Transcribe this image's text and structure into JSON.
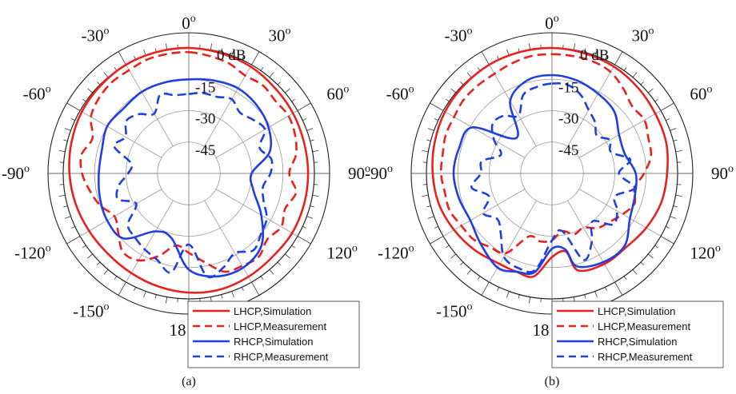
{
  "figure": {
    "panels": [
      "(a)",
      "(b)"
    ]
  },
  "chart_data": [
    {
      "type": "polar",
      "caption": "(a)",
      "radial_unit": "dB",
      "radial_labels": [
        "0 dB",
        "-15",
        "-30",
        "-45"
      ],
      "rlim": [
        -60,
        0
      ],
      "angular_labels": [
        {
          "deg": 0,
          "text": "0",
          "sup": "o"
        },
        {
          "deg": 30,
          "text": "30",
          "sup": "o"
        },
        {
          "deg": 60,
          "text": "60",
          "sup": "o"
        },
        {
          "deg": 90,
          "text": "90",
          "sup": "o"
        },
        {
          "deg": 120,
          "text": "120",
          "sup": "o"
        },
        {
          "deg": 180,
          "text": "18",
          "sup": ""
        },
        {
          "deg": -150,
          "text": "-150",
          "sup": "o"
        },
        {
          "deg": -120,
          "text": "-120",
          "sup": "o"
        },
        {
          "deg": -90,
          "text": "-90",
          "sup": "o"
        },
        {
          "deg": -60,
          "text": "-60",
          "sup": "o"
        },
        {
          "deg": -30,
          "text": "-30",
          "sup": "o"
        }
      ],
      "grid": true,
      "legend_position": "bottom-right",
      "series": [
        {
          "name": "LHCP,Simulation",
          "color": "#e8211d",
          "dash": "solid",
          "theta": [
            0,
            15,
            30,
            45,
            60,
            75,
            90,
            105,
            120,
            135,
            150,
            165,
            180,
            195,
            210,
            225,
            240,
            255,
            270,
            285,
            300,
            315,
            330,
            345
          ],
          "r_db": [
            0,
            -0.5,
            -1,
            -2,
            -2.5,
            -3,
            -3,
            -3,
            -3,
            -3.5,
            -3,
            -2.5,
            -3,
            -4,
            -5,
            -5.5,
            -5,
            -4,
            -3,
            -2,
            -1,
            -0.5,
            0,
            0
          ]
        },
        {
          "name": "LHCP,Measurement",
          "color": "#e8211d",
          "dash": "dashed",
          "theta": [
            0,
            10,
            20,
            30,
            40,
            50,
            60,
            70,
            80,
            90,
            100,
            110,
            120,
            130,
            140,
            150,
            160,
            170,
            180,
            190,
            200,
            210,
            220,
            230,
            240,
            250,
            260,
            270,
            280,
            290,
            300,
            310,
            320,
            330,
            340,
            350
          ],
          "r_db": [
            -2,
            -3,
            -4,
            -6,
            -5,
            -6,
            -5,
            -6,
            -8,
            -12,
            -8,
            -11,
            -9,
            -11,
            -8,
            -9,
            -10,
            -17,
            -22,
            -25,
            -18,
            -12,
            -11,
            -16,
            -19,
            -15,
            -12,
            -9,
            -8,
            -11,
            -6,
            -4,
            -3,
            -3,
            -2,
            -2
          ]
        },
        {
          "name": "RHCP,Simulation",
          "color": "#1f3fe0",
          "dash": "solid",
          "theta": [
            0,
            15,
            30,
            45,
            60,
            75,
            90,
            105,
            120,
            135,
            150,
            165,
            180,
            195,
            210,
            225,
            240,
            255,
            270,
            285,
            300,
            315,
            330,
            345
          ],
          "r_db": [
            -15,
            -14,
            -13,
            -14,
            -16,
            -20,
            -30,
            -28,
            -20,
            -11,
            -8,
            -9,
            -14,
            -28,
            -28,
            -16,
            -15,
            -16,
            -17,
            -17,
            -15,
            -16,
            -15,
            -15
          ]
        },
        {
          "name": "RHCP,Measurement",
          "color": "#1f3fe0",
          "dash": "dashed",
          "theta": [
            0,
            10,
            20,
            30,
            40,
            50,
            60,
            70,
            80,
            90,
            100,
            110,
            120,
            130,
            140,
            150,
            160,
            170,
            180,
            190,
            200,
            210,
            220,
            230,
            240,
            250,
            260,
            270,
            280,
            290,
            300,
            310,
            320,
            330,
            340,
            350
          ],
          "r_db": [
            -22,
            -21,
            -21,
            -19,
            -22,
            -20,
            -18,
            -24,
            -20,
            -21,
            -24,
            -22,
            -17,
            -15,
            -12,
            -16,
            -12,
            -10,
            -26,
            -12,
            -16,
            -18,
            -20,
            -22,
            -31,
            -24,
            -26,
            -31,
            -32,
            -22,
            -25,
            -21,
            -23,
            -27,
            -20,
            -22
          ]
        }
      ]
    },
    {
      "type": "polar",
      "caption": "(b)",
      "radial_unit": "dB",
      "radial_labels": [
        "0 dB",
        "-15",
        "-30",
        "-45"
      ],
      "rlim": [
        -60,
        0
      ],
      "angular_labels": [
        {
          "deg": 0,
          "text": "0",
          "sup": "o"
        },
        {
          "deg": 30,
          "text": "30",
          "sup": "o"
        },
        {
          "deg": 60,
          "text": "60",
          "sup": "o"
        },
        {
          "deg": 90,
          "text": "90",
          "sup": "o"
        },
        {
          "deg": 120,
          "text": "120",
          "sup": "o"
        },
        {
          "deg": 180,
          "text": "18",
          "sup": ""
        },
        {
          "deg": -150,
          "text": "-150",
          "sup": "o"
        },
        {
          "deg": -120,
          "text": "-120",
          "sup": "o"
        },
        {
          "deg": -90,
          "text": "-90",
          "sup": "o"
        },
        {
          "deg": -60,
          "text": "-60",
          "sup": "o"
        },
        {
          "deg": -30,
          "text": "-30",
          "sup": "o"
        }
      ],
      "grid": true,
      "legend_position": "bottom-right",
      "series": [
        {
          "name": "LHCP,Simulation",
          "color": "#e8211d",
          "dash": "solid",
          "theta": [
            0,
            15,
            30,
            45,
            60,
            75,
            90,
            105,
            120,
            135,
            150,
            165,
            170,
            180,
            190,
            200,
            210,
            225,
            240,
            255,
            270,
            285,
            300,
            315,
            330,
            345
          ],
          "r_db": [
            0,
            -0.5,
            -1,
            -2,
            -3,
            -3.5,
            -5,
            -6,
            -8,
            -10,
            -10,
            -12,
            -22,
            -20,
            -10,
            -10,
            -10,
            -8,
            -6,
            -4,
            -3,
            -2,
            -1,
            -0.5,
            0,
            0
          ]
        },
        {
          "name": "LHCP,Measurement",
          "color": "#e8211d",
          "dash": "dashed",
          "theta": [
            0,
            10,
            20,
            30,
            40,
            50,
            60,
            70,
            80,
            90,
            100,
            110,
            120,
            130,
            140,
            150,
            160,
            170,
            180,
            190,
            200,
            210,
            220,
            230,
            240,
            250,
            260,
            270,
            280,
            290,
            300,
            310,
            320,
            330,
            340,
            350
          ],
          "r_db": [
            -3,
            -3,
            -3,
            -4,
            -7,
            -10,
            -9,
            -11,
            -12,
            -16,
            -20,
            -18,
            -21,
            -24,
            -26,
            -30,
            -29,
            -32,
            -28,
            -27,
            -28,
            -16,
            -14,
            -11,
            -10,
            -8,
            -8,
            -7,
            -7,
            -6,
            -6,
            -5,
            -5,
            -5,
            -4,
            -3
          ]
        },
        {
          "name": "RHCP,Simulation",
          "color": "#1f3fe0",
          "dash": "solid",
          "theta": [
            0,
            15,
            30,
            45,
            60,
            75,
            90,
            105,
            120,
            135,
            150,
            165,
            170,
            180,
            190,
            200,
            210,
            225,
            240,
            255,
            270,
            285,
            300,
            315,
            330,
            345
          ],
          "r_db": [
            -13,
            -14,
            -16,
            -18,
            -23,
            -24,
            -20,
            -19,
            -17,
            -11,
            -11,
            -14,
            -23,
            -24,
            -12,
            -10,
            -8,
            -12,
            -15,
            -14,
            -13,
            -14,
            -16,
            -36,
            -20,
            -14
          ]
        },
        {
          "name": "RHCP,Measurement",
          "color": "#1f3fe0",
          "dash": "dashed",
          "theta": [
            0,
            10,
            20,
            30,
            40,
            50,
            60,
            70,
            80,
            90,
            100,
            110,
            120,
            130,
            140,
            150,
            160,
            170,
            180,
            190,
            200,
            210,
            220,
            230,
            240,
            250,
            260,
            270,
            280,
            290,
            300,
            310,
            320,
            330,
            340,
            350
          ],
          "r_db": [
            -17,
            -17,
            -20,
            -25,
            -28,
            -32,
            -28,
            -30,
            -22,
            -28,
            -20,
            -28,
            -24,
            -22,
            -30,
            -22,
            -16,
            -32,
            -28,
            -13,
            -12,
            -14,
            -22,
            -26,
            -22,
            -28,
            -21,
            -26,
            -26,
            -34,
            -28,
            -23,
            -24,
            -28,
            -20,
            -18
          ]
        }
      ]
    }
  ]
}
